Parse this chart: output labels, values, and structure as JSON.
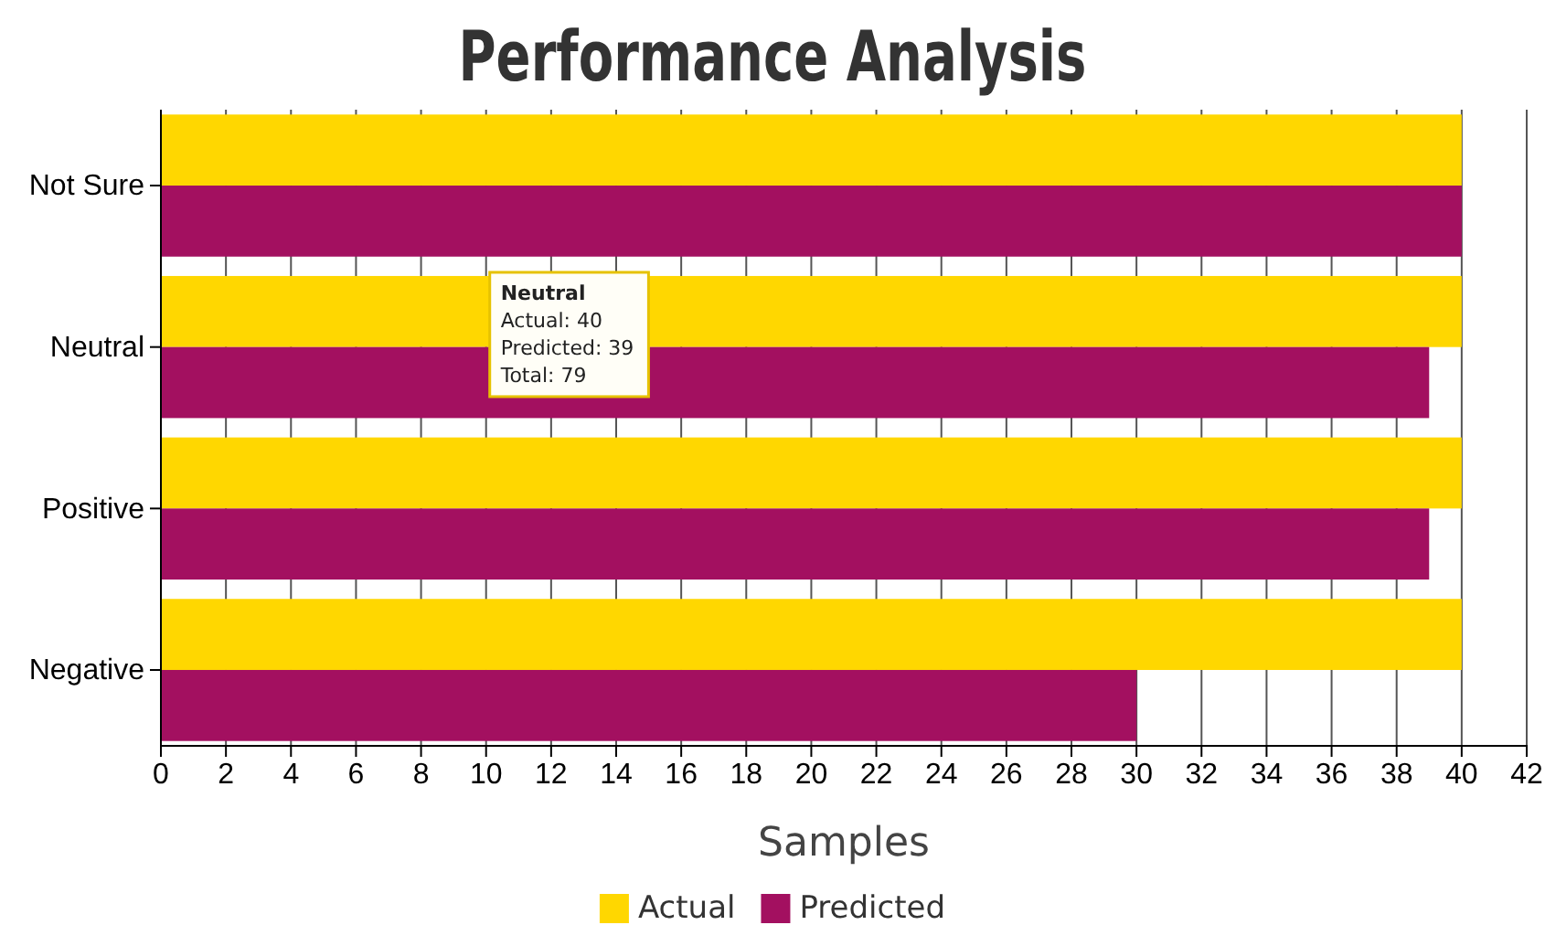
{
  "chart_data": {
    "type": "bar",
    "orientation": "horizontal",
    "title": "Performance Analysis",
    "xlabel": "Samples",
    "categories": [
      "Not Sure",
      "Neutral",
      "Positive",
      "Negative"
    ],
    "series": [
      {
        "name": "Actual",
        "color": "#ffd700",
        "values": [
          40,
          40,
          40,
          40
        ]
      },
      {
        "name": "Predicted",
        "color": "#a31060",
        "values": [
          40,
          39,
          39,
          30
        ]
      }
    ],
    "xlim": [
      0,
      42
    ],
    "xticks": [
      0,
      2,
      4,
      6,
      8,
      10,
      12,
      14,
      16,
      18,
      20,
      22,
      24,
      26,
      28,
      30,
      32,
      34,
      36,
      38,
      40,
      42
    ],
    "grid": "x",
    "legend": "bottom",
    "annotations": [
      "Neutral",
      "Actual: 40",
      "Predicted: 39",
      "Total: 79"
    ]
  }
}
